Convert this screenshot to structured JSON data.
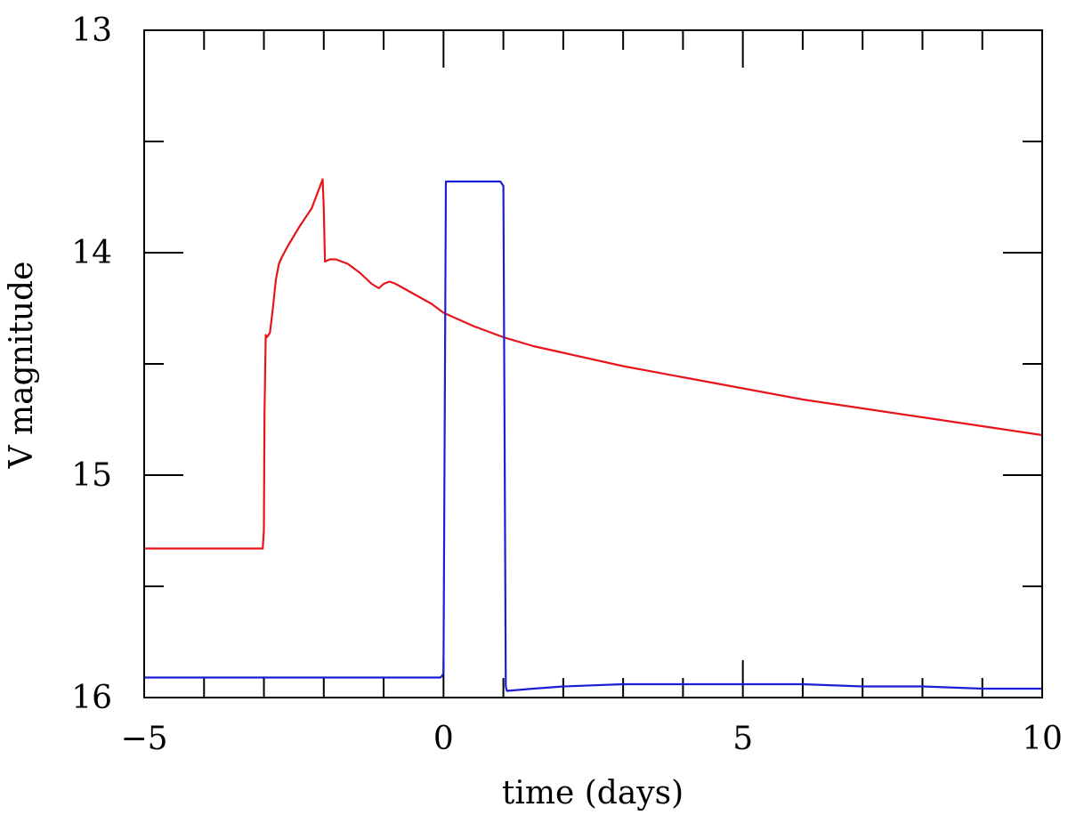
{
  "chart_data": {
    "type": "line",
    "xlabel": "time (days)",
    "ylabel": "V magnitude",
    "xlim": [
      -5,
      10
    ],
    "ylim": [
      16,
      13
    ],
    "y_inverted": true,
    "x_ticks": [
      "−5",
      "0",
      "5",
      "10"
    ],
    "y_ticks": [
      "13",
      "14",
      "15",
      "16"
    ],
    "grid": false,
    "series": [
      {
        "color": "#e8141c",
        "x": [
          -5,
          -3.02,
          -3.0,
          -2.99,
          -2.97,
          -2.95,
          -2.9,
          -2.85,
          -2.8,
          -2.75,
          -2.7,
          -2.6,
          -2.4,
          -2.2,
          -2.02,
          -2.0,
          -1.98,
          -1.9,
          -1.8,
          -1.6,
          -1.4,
          -1.2,
          -1.08,
          -1.0,
          -0.9,
          -0.8,
          -0.6,
          -0.4,
          -0.2,
          0,
          0.5,
          1.0,
          1.5,
          2,
          3,
          4,
          5,
          6,
          7,
          8,
          9,
          10
        ],
        "y": [
          15.33,
          15.33,
          15.25,
          14.72,
          14.37,
          14.38,
          14.36,
          14.25,
          14.12,
          14.05,
          14.02,
          13.97,
          13.88,
          13.8,
          13.67,
          13.8,
          14.04,
          14.03,
          14.03,
          14.05,
          14.09,
          14.14,
          14.16,
          14.14,
          14.13,
          14.14,
          14.17,
          14.2,
          14.23,
          14.27,
          14.33,
          14.38,
          14.42,
          14.45,
          14.51,
          14.56,
          14.61,
          14.66,
          14.7,
          14.74,
          14.78,
          14.82
        ]
      },
      {
        "color": "#1b1ed6",
        "x": [
          -5,
          -0.05,
          -0.02,
          0.0,
          0.04,
          0.95,
          1.0,
          1.04,
          1.06,
          1.5,
          2,
          3,
          4,
          5,
          6,
          7,
          8,
          9,
          10
        ],
        "y": [
          15.91,
          15.91,
          15.9,
          15.89,
          13.68,
          13.68,
          13.7,
          15.95,
          15.97,
          15.96,
          15.95,
          15.94,
          15.94,
          15.94,
          15.94,
          15.95,
          15.95,
          15.96,
          15.96
        ]
      }
    ]
  }
}
